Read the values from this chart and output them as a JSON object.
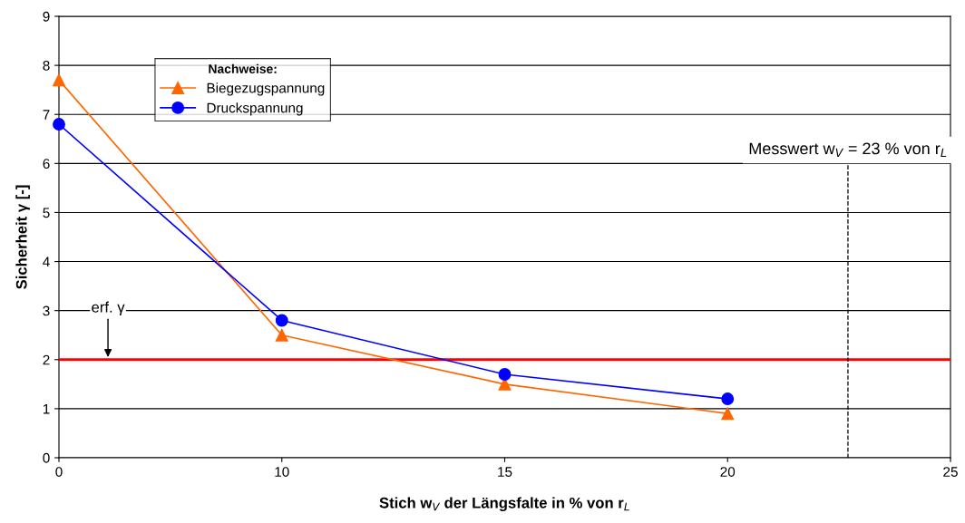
{
  "chart_data": {
    "type": "line",
    "xlabel": "Stich w$_{V}$ der Längsfalte in % von r$_{L}$",
    "ylabel": "Sicherheit γ [-]",
    "categories": [
      "0",
      "10",
      "15",
      "20",
      "25"
    ],
    "series": [
      {
        "name": "Biegezugspannung",
        "color": "#ff6600",
        "marker": "triangle",
        "values": [
          7.7,
          2.5,
          1.5,
          0.9,
          null
        ]
      },
      {
        "name": "Druckspannung",
        "color": "#0000ff",
        "marker": "circle",
        "values": [
          6.8,
          2.8,
          1.7,
          1.2,
          null
        ]
      }
    ],
    "ylim": [
      0,
      9
    ],
    "yticks": [
      0,
      1,
      2,
      3,
      4,
      5,
      6,
      7,
      8,
      9
    ],
    "grid": "y",
    "legend": "top left",
    "legend_title": "Nachweise:",
    "ref_lines": [
      {
        "axis": "y",
        "value": 2,
        "label": "erf. γ",
        "color": "#ff0000",
        "line_style": "solid"
      }
    ],
    "annotations": [
      "Messwert w$_{V}$ = 23 % von r$_{L}$"
    ]
  }
}
